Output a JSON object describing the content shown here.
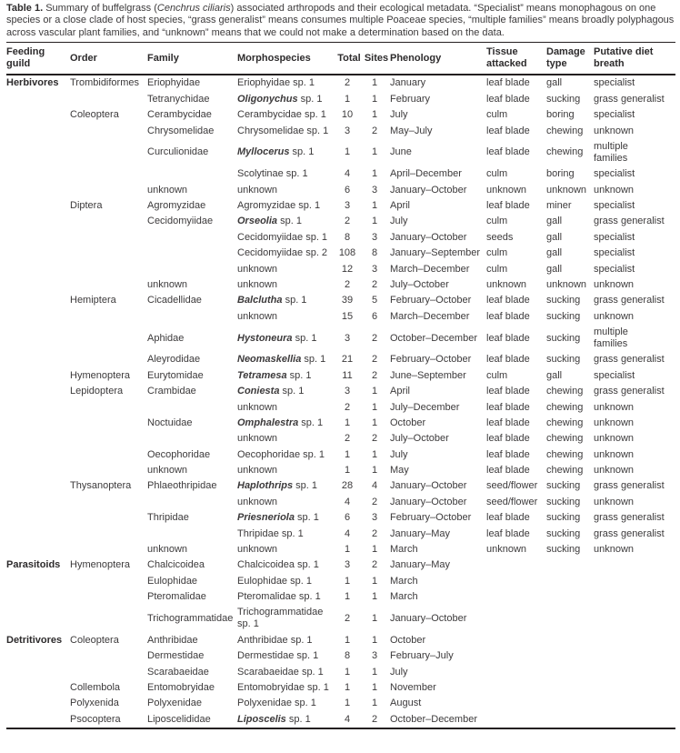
{
  "caption": {
    "label": "Table 1.",
    "before_species": " Summary of buffelgrass (",
    "species": "Cenchrus ciliaris",
    "after_species": ") associated arthropods and their ecological metadata. “Specialist” means monophagous on one species or a close clade of host species, “grass generalist” means consumes multiple Poaceae species, “multiple families” means broadly polyphagous across vascular plant families, and “unknown” means that we could not make a determination based on the data."
  },
  "table": {
    "columns": [
      {
        "key": "guild",
        "label": "Feeding guild"
      },
      {
        "key": "order",
        "label": "Order"
      },
      {
        "key": "family",
        "label": "Family"
      },
      {
        "key": "morpho",
        "label": "Morphospecies"
      },
      {
        "key": "total",
        "label": "Total"
      },
      {
        "key": "sites",
        "label": "Sites"
      },
      {
        "key": "phen",
        "label": "Phenology"
      },
      {
        "key": "tissue",
        "label": "Tissue attacked"
      },
      {
        "key": "damage",
        "label": "Damage type"
      },
      {
        "key": "diet",
        "label": "Putative diet breath"
      }
    ],
    "rows": [
      {
        "guild": "Herbivores",
        "order": "Trombidiformes",
        "family": "Eriophyidae",
        "genus": "",
        "morpho": "Eriophyidae sp. 1",
        "total": "2",
        "sites": "1",
        "phenology": "January",
        "tissue": "leaf blade",
        "damage": "gall",
        "diet": "specialist"
      },
      {
        "family": "Tetranychidae",
        "genus": "Oligonychus",
        "morpho": " sp. 1",
        "total": "1",
        "sites": "1",
        "phenology": "February",
        "tissue": "leaf blade",
        "damage": "sucking",
        "diet": "grass generalist"
      },
      {
        "order": "Coleoptera",
        "family": "Cerambycidae",
        "morpho": "Cerambycidae sp. 1",
        "total": "10",
        "sites": "1",
        "phenology": "July",
        "tissue": "culm",
        "damage": "boring",
        "diet": "specialist"
      },
      {
        "family": "Chrysomelidae",
        "morpho": "Chrysomelidae sp. 1",
        "total": "3",
        "sites": "2",
        "phenology": "May–July",
        "tissue": "leaf blade",
        "damage": "chewing",
        "diet": "unknown"
      },
      {
        "family": "Curculionidae",
        "genus": "Myllocerus",
        "morpho": " sp. 1",
        "total": "1",
        "sites": "1",
        "phenology": "June",
        "tissue": "leaf blade",
        "damage": "chewing",
        "diet": "multiple\nfamilies"
      },
      {
        "morpho": "Scolytinae sp. 1",
        "total": "4",
        "sites": "1",
        "phenology": "April–December",
        "tissue": "culm",
        "damage": "boring",
        "diet": "specialist"
      },
      {
        "family": "unknown",
        "morpho": "unknown",
        "total": "6",
        "sites": "3",
        "phenology": "January–October",
        "tissue": "unknown",
        "damage": "unknown",
        "diet": "unknown"
      },
      {
        "order": "Diptera",
        "family": "Agromyzidae",
        "morpho": "Agromyzidae sp. 1",
        "total": "3",
        "sites": "1",
        "phenology": "April",
        "tissue": "leaf blade",
        "damage": "miner",
        "diet": "specialist"
      },
      {
        "family": "Cecidomyiidae",
        "genus": "Orseolia",
        "morpho": " sp. 1",
        "total": "2",
        "sites": "1",
        "phenology": "July",
        "tissue": "culm",
        "damage": "gall",
        "diet": "grass generalist"
      },
      {
        "morpho": "Cecidomyiidae sp. 1",
        "total": "8",
        "sites": "3",
        "phenology": "January–October",
        "tissue": "seeds",
        "damage": "gall",
        "diet": "specialist"
      },
      {
        "morpho": "Cecidomyiidae sp. 2",
        "total": "108",
        "sites": "8",
        "phenology": "January–September",
        "tissue": "culm",
        "damage": "gall",
        "diet": "specialist"
      },
      {
        "morpho": "unknown",
        "total": "12",
        "sites": "3",
        "phenology": "March–December",
        "tissue": "culm",
        "damage": "gall",
        "diet": "specialist"
      },
      {
        "family": "unknown",
        "morpho": "unknown",
        "total": "2",
        "sites": "2",
        "phenology": "July–October",
        "tissue": "unknown",
        "damage": "unknown",
        "diet": "unknown"
      },
      {
        "order": "Hemiptera",
        "family": "Cicadellidae",
        "genus": "Balclutha",
        "morpho": " sp. 1",
        "total": "39",
        "sites": "5",
        "phenology": "February–October",
        "tissue": "leaf blade",
        "damage": "sucking",
        "diet": "grass generalist"
      },
      {
        "morpho": "unknown",
        "total": "15",
        "sites": "6",
        "phenology": "March–December",
        "tissue": "leaf blade",
        "damage": "sucking",
        "diet": "unknown"
      },
      {
        "family": "Aphidae",
        "genus": "Hystoneura",
        "morpho": " sp. 1",
        "total": "3",
        "sites": "2",
        "phenology": "October–December",
        "tissue": "leaf blade",
        "damage": "sucking",
        "diet": "multiple\nfamilies"
      },
      {
        "family": "Aleyrodidae",
        "genus": "Neomaskellia",
        "morpho": " sp. 1",
        "total": "21",
        "sites": "2",
        "phenology": "February–October",
        "tissue": "leaf blade",
        "damage": "sucking",
        "diet": "grass generalist"
      },
      {
        "order": "Hymenoptera",
        "family": "Eurytomidae",
        "genus": "Tetramesa",
        "morpho": " sp. 1",
        "total": "11",
        "sites": "2",
        "phenology": "June–September",
        "tissue": "culm",
        "damage": "gall",
        "diet": "specialist"
      },
      {
        "order": "Lepidoptera",
        "family": "Crambidae",
        "genus": "Coniesta",
        "morpho": " sp. 1",
        "total": "3",
        "sites": "1",
        "phenology": "April",
        "tissue": "leaf blade",
        "damage": "chewing",
        "diet": "grass generalist"
      },
      {
        "morpho": "unknown",
        "total": "2",
        "sites": "1",
        "phenology": "July–December",
        "tissue": "leaf blade",
        "damage": "chewing",
        "diet": "unknown"
      },
      {
        "family": "Noctuidae",
        "genus": "Omphalestra",
        "morpho": " sp. 1",
        "total": "1",
        "sites": "1",
        "phenology": "October",
        "tissue": "leaf blade",
        "damage": "chewing",
        "diet": "unknown"
      },
      {
        "morpho": "unknown",
        "total": "2",
        "sites": "2",
        "phenology": "July–October",
        "tissue": "leaf blade",
        "damage": "chewing",
        "diet": "unknown"
      },
      {
        "family": "Oecophoridae",
        "morpho": "Oecophoridae sp. 1",
        "total": "1",
        "sites": "1",
        "phenology": "July",
        "tissue": "leaf blade",
        "damage": "chewing",
        "diet": "unknown"
      },
      {
        "family": "unknown",
        "morpho": "unknown",
        "total": "1",
        "sites": "1",
        "phenology": "May",
        "tissue": "leaf blade",
        "damage": "chewing",
        "diet": "unknown"
      },
      {
        "order": "Thysanoptera",
        "family": "Phlaeothripidae",
        "genus": "Haplothrips",
        "morpho": " sp. 1",
        "total": "28",
        "sites": "4",
        "phenology": "January–October",
        "tissue": "seed/flower",
        "damage": "sucking",
        "diet": "grass generalist"
      },
      {
        "morpho": "unknown",
        "total": "4",
        "sites": "2",
        "phenology": "January–October",
        "tissue": "seed/flower",
        "damage": "sucking",
        "diet": "unknown"
      },
      {
        "family": "Thripidae",
        "genus": "Priesneriola",
        "morpho": " sp. 1",
        "total": "6",
        "sites": "3",
        "phenology": "February–October",
        "tissue": "leaf blade",
        "damage": "sucking",
        "diet": "grass generalist"
      },
      {
        "morpho": "Thripidae sp. 1",
        "total": "4",
        "sites": "2",
        "phenology": "January–May",
        "tissue": "leaf blade",
        "damage": "sucking",
        "diet": "grass generalist"
      },
      {
        "family": "unknown",
        "morpho": "unknown",
        "total": "1",
        "sites": "1",
        "phenology": "March",
        "tissue": "unknown",
        "damage": "sucking",
        "diet": "unknown"
      },
      {
        "guild": "Parasitoids",
        "order": "Hymenoptera",
        "family": "Chalcicoidea",
        "morpho": "Chalcicoidea sp. 1",
        "total": "3",
        "sites": "2",
        "phenology": "January–May",
        "tissue": "",
        "damage": "",
        "diet": ""
      },
      {
        "family": "Eulophidae",
        "morpho": "Eulophidae sp. 1",
        "total": "1",
        "sites": "1",
        "phenology": "March",
        "tissue": "",
        "damage": "",
        "diet": ""
      },
      {
        "family": "Pteromalidae",
        "morpho": "Pteromalidae sp. 1",
        "total": "1",
        "sites": "1",
        "phenology": "March",
        "tissue": "",
        "damage": "",
        "diet": ""
      },
      {
        "family": "Trichogrammatidae",
        "morpho": "Trichogrammatidae sp. 1",
        "total": "2",
        "sites": "1",
        "phenology": "January–October",
        "tissue": "",
        "damage": "",
        "diet": ""
      },
      {
        "guild": "Detritivores",
        "order": "Coleoptera",
        "family": "Anthribidae",
        "morpho": "Anthribidae sp. 1",
        "total": "1",
        "sites": "1",
        "phenology": "October",
        "tissue": "",
        "damage": "",
        "diet": ""
      },
      {
        "family": "Dermestidae",
        "morpho": "Dermestidae sp. 1",
        "total": "8",
        "sites": "3",
        "phenology": "February–July",
        "tissue": "",
        "damage": "",
        "diet": ""
      },
      {
        "family": "Scarabaeidae",
        "morpho": "Scarabaeidae sp. 1",
        "total": "1",
        "sites": "1",
        "phenology": "July",
        "tissue": "",
        "damage": "",
        "diet": ""
      },
      {
        "order": "Collembola",
        "family": "Entomobryidae",
        "morpho": "Entomobryidae sp. 1",
        "total": "1",
        "sites": "1",
        "phenology": "November",
        "tissue": "",
        "damage": "",
        "diet": ""
      },
      {
        "order": "Polyxenida",
        "family": "Polyxenidae",
        "morpho": "Polyxenidae sp. 1",
        "total": "1",
        "sites": "1",
        "phenology": "August",
        "tissue": "",
        "damage": "",
        "diet": ""
      },
      {
        "order": "Psocoptera",
        "family": "Liposcelididae",
        "genus": "Liposcelis",
        "morpho": " sp. 1",
        "total": "4",
        "sites": "2",
        "phenology": "October–December",
        "tissue": "",
        "damage": "",
        "diet": ""
      }
    ]
  }
}
